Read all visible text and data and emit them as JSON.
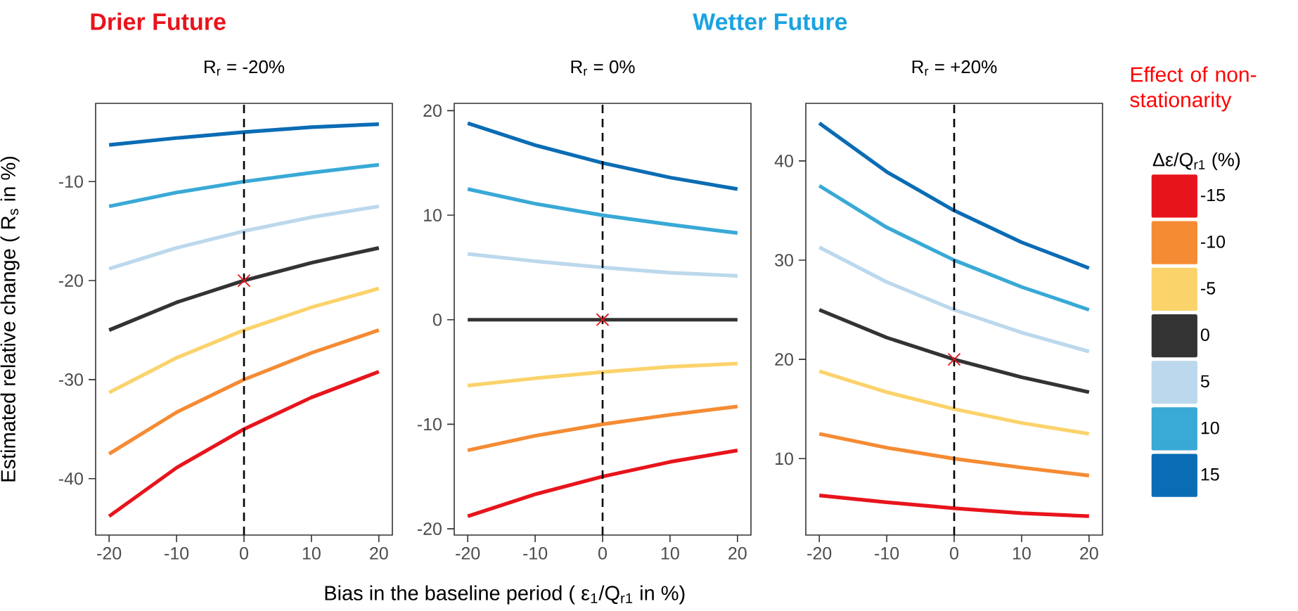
{
  "chart_data": [
    {
      "type": "line",
      "title": "Drier Future",
      "subtitle": "R$_{r}$  = -20%",
      "ylabel": "Estimated relative change ( R$_{s}$ in %)",
      "x": [
        -20,
        -10,
        0,
        10,
        20
      ],
      "xlim": [
        -22,
        22
      ],
      "ylim": [
        -45.7,
        -2.1
      ],
      "xticks": [
        -20,
        -10,
        0,
        10,
        20
      ],
      "yticks": [
        -40,
        -30,
        -20,
        -10
      ],
      "ref_lines": [
        {
          "axis": "x",
          "value": 0,
          "color": "#000000",
          "line_style": "dashed"
        }
      ],
      "series": [
        {
          "color": "#e8141c",
          "values": [
            -43.8,
            -38.9,
            -35,
            -31.8,
            -29.2
          ]
        },
        {
          "color": "#f58b33",
          "values": [
            -37.5,
            -33.3,
            -30,
            -27.3,
            -25
          ]
        },
        {
          "color": "#fbd36b",
          "values": [
            -31.3,
            -27.8,
            -25,
            -22.7,
            -20.8
          ]
        },
        {
          "color": "#333333",
          "values": [
            -25,
            -22.2,
            -20,
            -18.2,
            -16.7
          ]
        },
        {
          "color": "#bcd8ec",
          "values": [
            -18.8,
            -16.7,
            -15,
            -13.6,
            -12.5
          ]
        },
        {
          "color": "#39a9d6",
          "values": [
            -12.5,
            -11.1,
            -10,
            -9.1,
            -8.3
          ]
        },
        {
          "color": "#0a6cb4",
          "values": [
            -6.3,
            -5.6,
            -5,
            -4.5,
            -4.2
          ]
        },
        {
          "type": "scatter",
          "marker": "cross",
          "color": "#e8141c",
          "values": [
            null,
            null,
            -20,
            null,
            null
          ]
        }
      ]
    },
    {
      "type": "line",
      "title": "R$_{r}$  = 0%",
      "xlabel": "Bias in the baseline period ( ε$_{1}$/Q$_{r1}$ in %)",
      "x": [
        -20,
        -10,
        0,
        10,
        20
      ],
      "xlim": [
        -22,
        22
      ],
      "ylim": [
        -20.6,
        20.7
      ],
      "xticks": [
        -20,
        -10,
        0,
        10,
        20
      ],
      "yticks": [
        -20,
        -10,
        0,
        10,
        20
      ],
      "ref_lines": [
        {
          "axis": "x",
          "value": 0,
          "color": "#000000",
          "line_style": "dashed"
        }
      ],
      "series": [
        {
          "color": "#e8141c",
          "values": [
            -18.8,
            -16.7,
            -15,
            -13.6,
            -12.5
          ]
        },
        {
          "color": "#f58b33",
          "values": [
            -12.5,
            -11.1,
            -10,
            -9.1,
            -8.3
          ]
        },
        {
          "color": "#fbd36b",
          "values": [
            -6.3,
            -5.6,
            -5,
            -4.5,
            -4.2
          ]
        },
        {
          "color": "#333333",
          "values": [
            0,
            0,
            0,
            0,
            0
          ]
        },
        {
          "color": "#bcd8ec",
          "values": [
            6.3,
            5.6,
            5,
            4.5,
            4.2
          ]
        },
        {
          "color": "#39a9d6",
          "values": [
            12.5,
            11.1,
            10,
            9.1,
            8.3
          ]
        },
        {
          "color": "#0a6cb4",
          "values": [
            18.8,
            16.7,
            15,
            13.6,
            12.5
          ]
        },
        {
          "type": "scatter",
          "marker": "cross",
          "color": "#e8141c",
          "values": [
            null,
            null,
            0,
            null,
            null
          ]
        }
      ]
    },
    {
      "type": "line",
      "title": "Wetter Future",
      "subtitle": "R$_{r}$  = +20%",
      "legend_title": "Δε/Q$_{r1}$ (%)",
      "legend": "right",
      "annotations": [
        "Effect of non-stationarity"
      ],
      "x": [
        -20,
        -10,
        0,
        10,
        20
      ],
      "xlim": [
        -22,
        22
      ],
      "ylim": [
        2.3,
        45.8
      ],
      "xticks": [
        -20,
        -10,
        0,
        10,
        20
      ],
      "yticks": [
        10,
        20,
        30,
        40
      ],
      "ref_lines": [
        {
          "axis": "x",
          "value": 0,
          "color": "#000000",
          "line_style": "dashed"
        }
      ],
      "series": [
        {
          "name": "-15",
          "color": "#e8141c",
          "values": [
            6.3,
            5.6,
            5,
            4.5,
            4.2
          ]
        },
        {
          "name": "-10",
          "color": "#f58b33",
          "values": [
            12.5,
            11.1,
            10,
            9.1,
            8.3
          ]
        },
        {
          "name": "-5",
          "color": "#fbd36b",
          "values": [
            18.8,
            16.7,
            15,
            13.6,
            12.5
          ]
        },
        {
          "name": "0",
          "color": "#333333",
          "values": [
            25,
            22.2,
            20,
            18.2,
            16.7
          ]
        },
        {
          "name": "5",
          "color": "#bcd8ec",
          "values": [
            31.3,
            27.8,
            25,
            22.7,
            20.8
          ]
        },
        {
          "name": "10",
          "color": "#39a9d6",
          "values": [
            37.5,
            33.3,
            30,
            27.3,
            25
          ]
        },
        {
          "name": "15",
          "color": "#0a6cb4",
          "values": [
            43.8,
            38.9,
            35,
            31.8,
            29.2
          ]
        },
        {
          "type": "scatter",
          "marker": "cross",
          "color": "#e8141c",
          "values": [
            null,
            null,
            20,
            null,
            null
          ]
        }
      ]
    }
  ]
}
